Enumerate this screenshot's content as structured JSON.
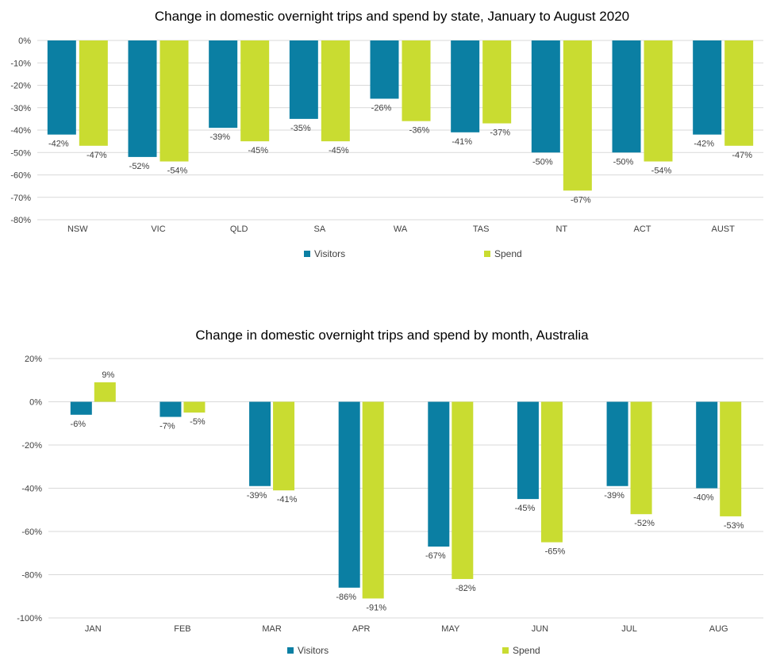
{
  "chart_data": [
    {
      "type": "bar",
      "title": "Change in domestic overnight trips and spend by state, January to August 2020",
      "categories": [
        "NSW",
        "VIC",
        "QLD",
        "SA",
        "WA",
        "TAS",
        "NT",
        "ACT",
        "AUST"
      ],
      "series": [
        {
          "name": "Visitors",
          "color": "#0b7fa3",
          "values": [
            -42,
            -52,
            -39,
            -35,
            -26,
            -41,
            -50,
            -50,
            -42
          ]
        },
        {
          "name": "Spend",
          "color": "#c9dc31",
          "values": [
            -47,
            -54,
            -45,
            -45,
            -36,
            -37,
            -67,
            -54,
            -47
          ]
        }
      ],
      "ylim": [
        -80,
        0
      ],
      "yticks": [
        0,
        -10,
        -20,
        -30,
        -40,
        -50,
        -60,
        -70,
        -80
      ],
      "ytick_labels": [
        "0%",
        "-10%",
        "-20%",
        "-30%",
        "-40%",
        "-50%",
        "-60%",
        "-70%",
        "-80%"
      ],
      "xlabel": "",
      "ylabel": "",
      "grid": true,
      "legend": "bottom"
    },
    {
      "type": "bar",
      "title": "Change in domestic overnight trips and spend by month, Australia",
      "categories": [
        "JAN",
        "FEB",
        "MAR",
        "APR",
        "MAY",
        "JUN",
        "JUL",
        "AUG"
      ],
      "series": [
        {
          "name": "Visitors",
          "color": "#0b7fa3",
          "values": [
            -6,
            -7,
            -39,
            -86,
            -67,
            -45,
            -39,
            -40
          ]
        },
        {
          "name": "Spend",
          "color": "#c9dc31",
          "values": [
            9,
            -5,
            -41,
            -91,
            -82,
            -65,
            -52,
            -53
          ]
        }
      ],
      "ylim": [
        -100,
        20
      ],
      "yticks": [
        20,
        0,
        -20,
        -40,
        -60,
        -80,
        -100
      ],
      "ytick_labels": [
        "20%",
        "0%",
        "-20%",
        "-40%",
        "-60%",
        "-80%",
        "-100%"
      ],
      "xlabel": "",
      "ylabel": "",
      "grid": true,
      "legend": "bottom"
    }
  ]
}
